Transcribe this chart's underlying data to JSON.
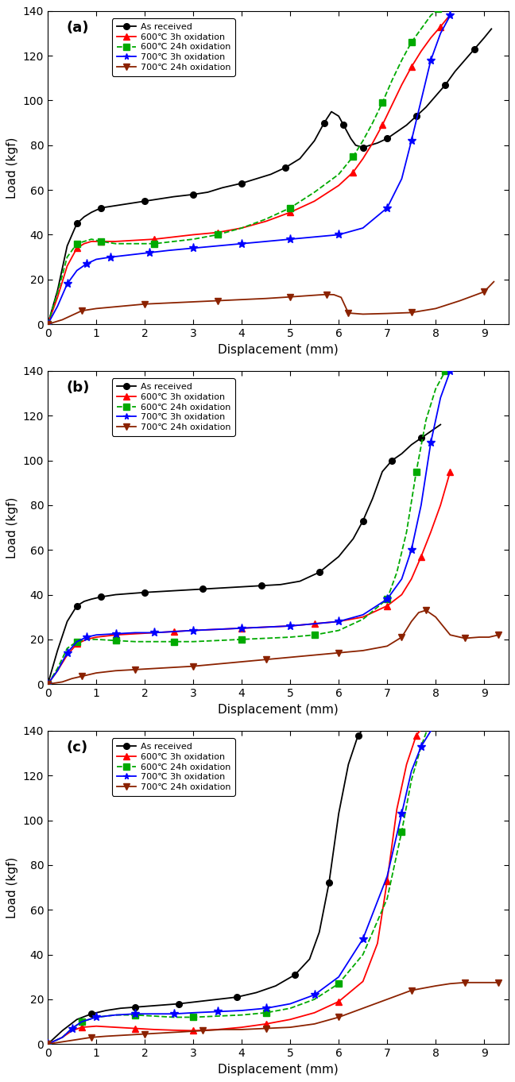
{
  "panels": [
    "(a)",
    "(b)",
    "(c)"
  ],
  "xlabel": "Displacement (mm)",
  "ylabel": "Load (kgf)",
  "xlim": [
    0,
    9.5
  ],
  "ylim": [
    0,
    140
  ],
  "xticks": [
    0,
    1,
    2,
    3,
    4,
    5,
    6,
    7,
    8,
    9
  ],
  "yticks": [
    0,
    20,
    40,
    60,
    80,
    100,
    120,
    140
  ],
  "legend_labels": [
    "As received",
    "600℃ 3h oxidation",
    "600℃ 24h oxidation",
    "700℃ 3h oxidation",
    "700℃ 24h oxidation"
  ],
  "colors": [
    "#000000",
    "#FF0000",
    "#00AA00",
    "#0000FF",
    "#8B2200"
  ],
  "linestyles": [
    "-",
    "-",
    "--",
    "-",
    "-"
  ],
  "markers": [
    "o",
    "^",
    "s",
    "*",
    "v"
  ],
  "series": {
    "a": {
      "as_received": {
        "x": [
          0.0,
          0.2,
          0.4,
          0.6,
          0.75,
          0.9,
          1.1,
          1.4,
          1.7,
          2.0,
          2.3,
          2.6,
          3.0,
          3.3,
          3.6,
          4.0,
          4.3,
          4.6,
          4.9,
          5.2,
          5.5,
          5.7,
          5.85,
          6.0,
          6.1,
          6.25,
          6.35,
          6.5,
          6.65,
          6.8,
          7.0,
          7.2,
          7.4,
          7.6,
          7.8,
          8.0,
          8.2,
          8.4,
          8.6,
          8.8,
          9.0,
          9.15
        ],
        "y": [
          0,
          15,
          35,
          45,
          48,
          50,
          52,
          53,
          54,
          55,
          56,
          57,
          58,
          59,
          61,
          63,
          65,
          67,
          70,
          74,
          82,
          90,
          95,
          93,
          89,
          83,
          80,
          79,
          80,
          81,
          83,
          86,
          89,
          93,
          97,
          102,
          107,
          113,
          118,
          123,
          128,
          132
        ]
      },
      "600_3h": {
        "x": [
          0.0,
          0.2,
          0.4,
          0.6,
          0.75,
          0.9,
          1.1,
          1.4,
          1.8,
          2.2,
          2.6,
          3.0,
          3.5,
          4.0,
          4.5,
          5.0,
          5.5,
          6.0,
          6.3,
          6.5,
          6.7,
          6.9,
          7.1,
          7.3,
          7.5,
          7.7,
          7.9,
          8.1,
          8.25
        ],
        "y": [
          0,
          12,
          26,
          34,
          36,
          37,
          37,
          37,
          37.5,
          38,
          39,
          40,
          41,
          43,
          46,
          50,
          55,
          62,
          68,
          74,
          81,
          89,
          98,
          107,
          115,
          122,
          128,
          133,
          137
        ]
      },
      "600_24h": {
        "x": [
          0.0,
          0.2,
          0.4,
          0.6,
          0.75,
          0.9,
          1.1,
          1.4,
          1.8,
          2.2,
          2.6,
          3.0,
          3.5,
          4.0,
          4.5,
          5.0,
          5.5,
          6.0,
          6.3,
          6.5,
          6.7,
          6.9,
          7.1,
          7.3,
          7.5,
          7.7,
          7.9,
          8.05
        ],
        "y": [
          0,
          14,
          30,
          36,
          37,
          38,
          37,
          36,
          36,
          36,
          37,
          38,
          40,
          43,
          47,
          52,
          59,
          67,
          75,
          82,
          90,
          99,
          109,
          118,
          126,
          132,
          138,
          141
        ]
      },
      "700_3h": {
        "x": [
          0.0,
          0.2,
          0.4,
          0.6,
          0.8,
          1.0,
          1.3,
          1.7,
          2.1,
          2.5,
          3.0,
          3.5,
          4.0,
          4.5,
          5.0,
          5.5,
          6.0,
          6.5,
          7.0,
          7.3,
          7.5,
          7.7,
          7.9,
          8.1,
          8.3
        ],
        "y": [
          0,
          8,
          18,
          24,
          27,
          29,
          30,
          31,
          32,
          33,
          34,
          35,
          36,
          37,
          38,
          39,
          40,
          43,
          52,
          65,
          82,
          100,
          118,
          130,
          138
        ]
      },
      "700_24h": {
        "x": [
          0.0,
          0.3,
          0.5,
          0.7,
          1.0,
          1.5,
          2.0,
          2.5,
          3.0,
          3.5,
          4.0,
          4.5,
          5.0,
          5.4,
          5.6,
          5.75,
          5.9,
          6.05,
          6.2,
          6.5,
          7.0,
          7.5,
          8.0,
          8.5,
          9.0,
          9.2
        ],
        "y": [
          0,
          2,
          4,
          6,
          7,
          8,
          9,
          9.5,
          10,
          10.5,
          11,
          11.5,
          12.2,
          12.8,
          13.1,
          13.3,
          13.2,
          12.0,
          5.0,
          4.5,
          4.8,
          5.2,
          7.0,
          10.5,
          14.5,
          19
        ]
      }
    },
    "b": {
      "as_received": {
        "x": [
          0.0,
          0.2,
          0.4,
          0.6,
          0.75,
          0.9,
          1.1,
          1.4,
          1.7,
          2.0,
          2.4,
          2.8,
          3.2,
          3.6,
          4.0,
          4.4,
          4.8,
          5.2,
          5.6,
          6.0,
          6.3,
          6.5,
          6.7,
          6.9,
          7.1,
          7.3,
          7.5,
          7.7,
          7.9,
          8.1
        ],
        "y": [
          0,
          15,
          28,
          35,
          37,
          38,
          39,
          40,
          40.5,
          41,
          41.5,
          42,
          42.5,
          43,
          43.5,
          44,
          44.5,
          46,
          50,
          57,
          65,
          73,
          83,
          95,
          100,
          103,
          107,
          110,
          113,
          116
        ]
      },
      "600_3h": {
        "x": [
          0.0,
          0.2,
          0.4,
          0.6,
          0.8,
          1.0,
          1.4,
          1.8,
          2.2,
          2.6,
          3.0,
          3.5,
          4.0,
          4.5,
          5.0,
          5.5,
          6.0,
          6.5,
          7.0,
          7.3,
          7.5,
          7.7,
          7.9,
          8.1,
          8.3
        ],
        "y": [
          0,
          6,
          13,
          18,
          20,
          21,
          22,
          22.5,
          23,
          23.5,
          24,
          24.5,
          25,
          25.5,
          26,
          27,
          28,
          30,
          35,
          40,
          47,
          57,
          68,
          80,
          95
        ]
      },
      "600_24h": {
        "x": [
          0.0,
          0.2,
          0.4,
          0.6,
          0.8,
          1.0,
          1.4,
          1.8,
          2.2,
          2.6,
          3.0,
          3.5,
          4.0,
          4.5,
          5.0,
          5.5,
          6.0,
          6.5,
          7.0,
          7.2,
          7.4,
          7.6,
          7.8,
          8.0,
          8.2,
          8.35
        ],
        "y": [
          0,
          7,
          16,
          19,
          20,
          20,
          19.5,
          19,
          19,
          19,
          19,
          19.5,
          20,
          20.5,
          21,
          22,
          24,
          29,
          38,
          50,
          68,
          95,
          118,
          132,
          140,
          142
        ]
      },
      "700_3h": {
        "x": [
          0.0,
          0.2,
          0.4,
          0.6,
          0.8,
          1.0,
          1.4,
          1.8,
          2.2,
          2.6,
          3.0,
          3.5,
          4.0,
          4.5,
          5.0,
          5.5,
          6.0,
          6.5,
          7.0,
          7.3,
          7.5,
          7.7,
          7.9,
          8.1,
          8.3
        ],
        "y": [
          0,
          6,
          14,
          19,
          21,
          22,
          22.5,
          23,
          23,
          23.5,
          24,
          24.5,
          25,
          25.5,
          26,
          27,
          28,
          31,
          38,
          47,
          60,
          80,
          108,
          128,
          140
        ]
      },
      "700_24h": {
        "x": [
          0.0,
          0.3,
          0.5,
          0.7,
          1.0,
          1.4,
          1.8,
          2.2,
          2.6,
          3.0,
          3.5,
          4.0,
          4.5,
          5.0,
          5.5,
          6.0,
          6.5,
          7.0,
          7.3,
          7.5,
          7.65,
          7.8,
          8.0,
          8.3,
          8.6,
          8.9,
          9.1,
          9.3
        ],
        "y": [
          0,
          1,
          2.5,
          3.5,
          5,
          6,
          6.5,
          7,
          7.5,
          8,
          9,
          10,
          11,
          12,
          13,
          14,
          15,
          17,
          21,
          28,
          32,
          33,
          30,
          22,
          20.5,
          21,
          21,
          22
        ]
      }
    },
    "c": {
      "as_received": {
        "x": [
          0.0,
          0.3,
          0.6,
          0.9,
          1.2,
          1.5,
          1.8,
          2.1,
          2.4,
          2.7,
          3.1,
          3.5,
          3.9,
          4.3,
          4.7,
          5.1,
          5.4,
          5.6,
          5.8,
          6.0,
          6.2,
          6.4,
          6.55
        ],
        "y": [
          0,
          6,
          11,
          13.5,
          15,
          16,
          16.5,
          17,
          17.5,
          18,
          19,
          20,
          21,
          23,
          26,
          31,
          38,
          50,
          72,
          103,
          125,
          138,
          142
        ]
      },
      "600_3h": {
        "x": [
          0.0,
          0.3,
          0.5,
          0.7,
          1.0,
          1.4,
          1.8,
          2.2,
          2.6,
          3.0,
          3.5,
          4.0,
          4.5,
          5.0,
          5.5,
          6.0,
          6.5,
          6.8,
          7.0,
          7.2,
          7.4,
          7.6,
          7.75
        ],
        "y": [
          0,
          3,
          6,
          7.5,
          8,
          7.5,
          7,
          6.5,
          6.2,
          6,
          6.5,
          7.5,
          9,
          11,
          14,
          19,
          28,
          45,
          73,
          105,
          125,
          138,
          142
        ]
      },
      "600_24h": {
        "x": [
          0.0,
          0.3,
          0.5,
          0.7,
          1.0,
          1.4,
          1.8,
          2.2,
          2.6,
          3.0,
          3.5,
          4.0,
          4.5,
          5.0,
          5.5,
          6.0,
          6.5,
          7.0,
          7.3,
          7.5,
          7.7,
          7.85
        ],
        "y": [
          0,
          3,
          7,
          10,
          12,
          13,
          13,
          12.5,
          12,
          12,
          12.5,
          13,
          14,
          16,
          20,
          27,
          40,
          65,
          95,
          118,
          133,
          142
        ]
      },
      "700_3h": {
        "x": [
          0.0,
          0.3,
          0.5,
          0.7,
          1.0,
          1.4,
          1.8,
          2.2,
          2.6,
          3.0,
          3.5,
          4.0,
          4.5,
          5.0,
          5.5,
          6.0,
          6.5,
          7.0,
          7.3,
          7.5,
          7.7,
          7.9,
          8.05
        ],
        "y": [
          0,
          3,
          7,
          10,
          12,
          13,
          13.5,
          13.5,
          13.5,
          14,
          14.5,
          15,
          16,
          18,
          22,
          30,
          47,
          75,
          103,
          122,
          133,
          140,
          143
        ]
      },
      "700_24h": {
        "x": [
          0.0,
          0.3,
          0.6,
          0.9,
          1.2,
          1.6,
          2.0,
          2.4,
          2.8,
          3.2,
          3.6,
          4.0,
          4.5,
          5.0,
          5.5,
          6.0,
          6.5,
          7.0,
          7.5,
          8.0,
          8.3,
          8.6,
          8.9,
          9.1,
          9.3
        ],
        "y": [
          0,
          1,
          2,
          3,
          3.5,
          4,
          4.5,
          5,
          5.5,
          6,
          6.5,
          6.5,
          7,
          7.5,
          9,
          12,
          16,
          20,
          24,
          26,
          27,
          27.5,
          27.5,
          27.5,
          27.5
        ]
      }
    }
  }
}
